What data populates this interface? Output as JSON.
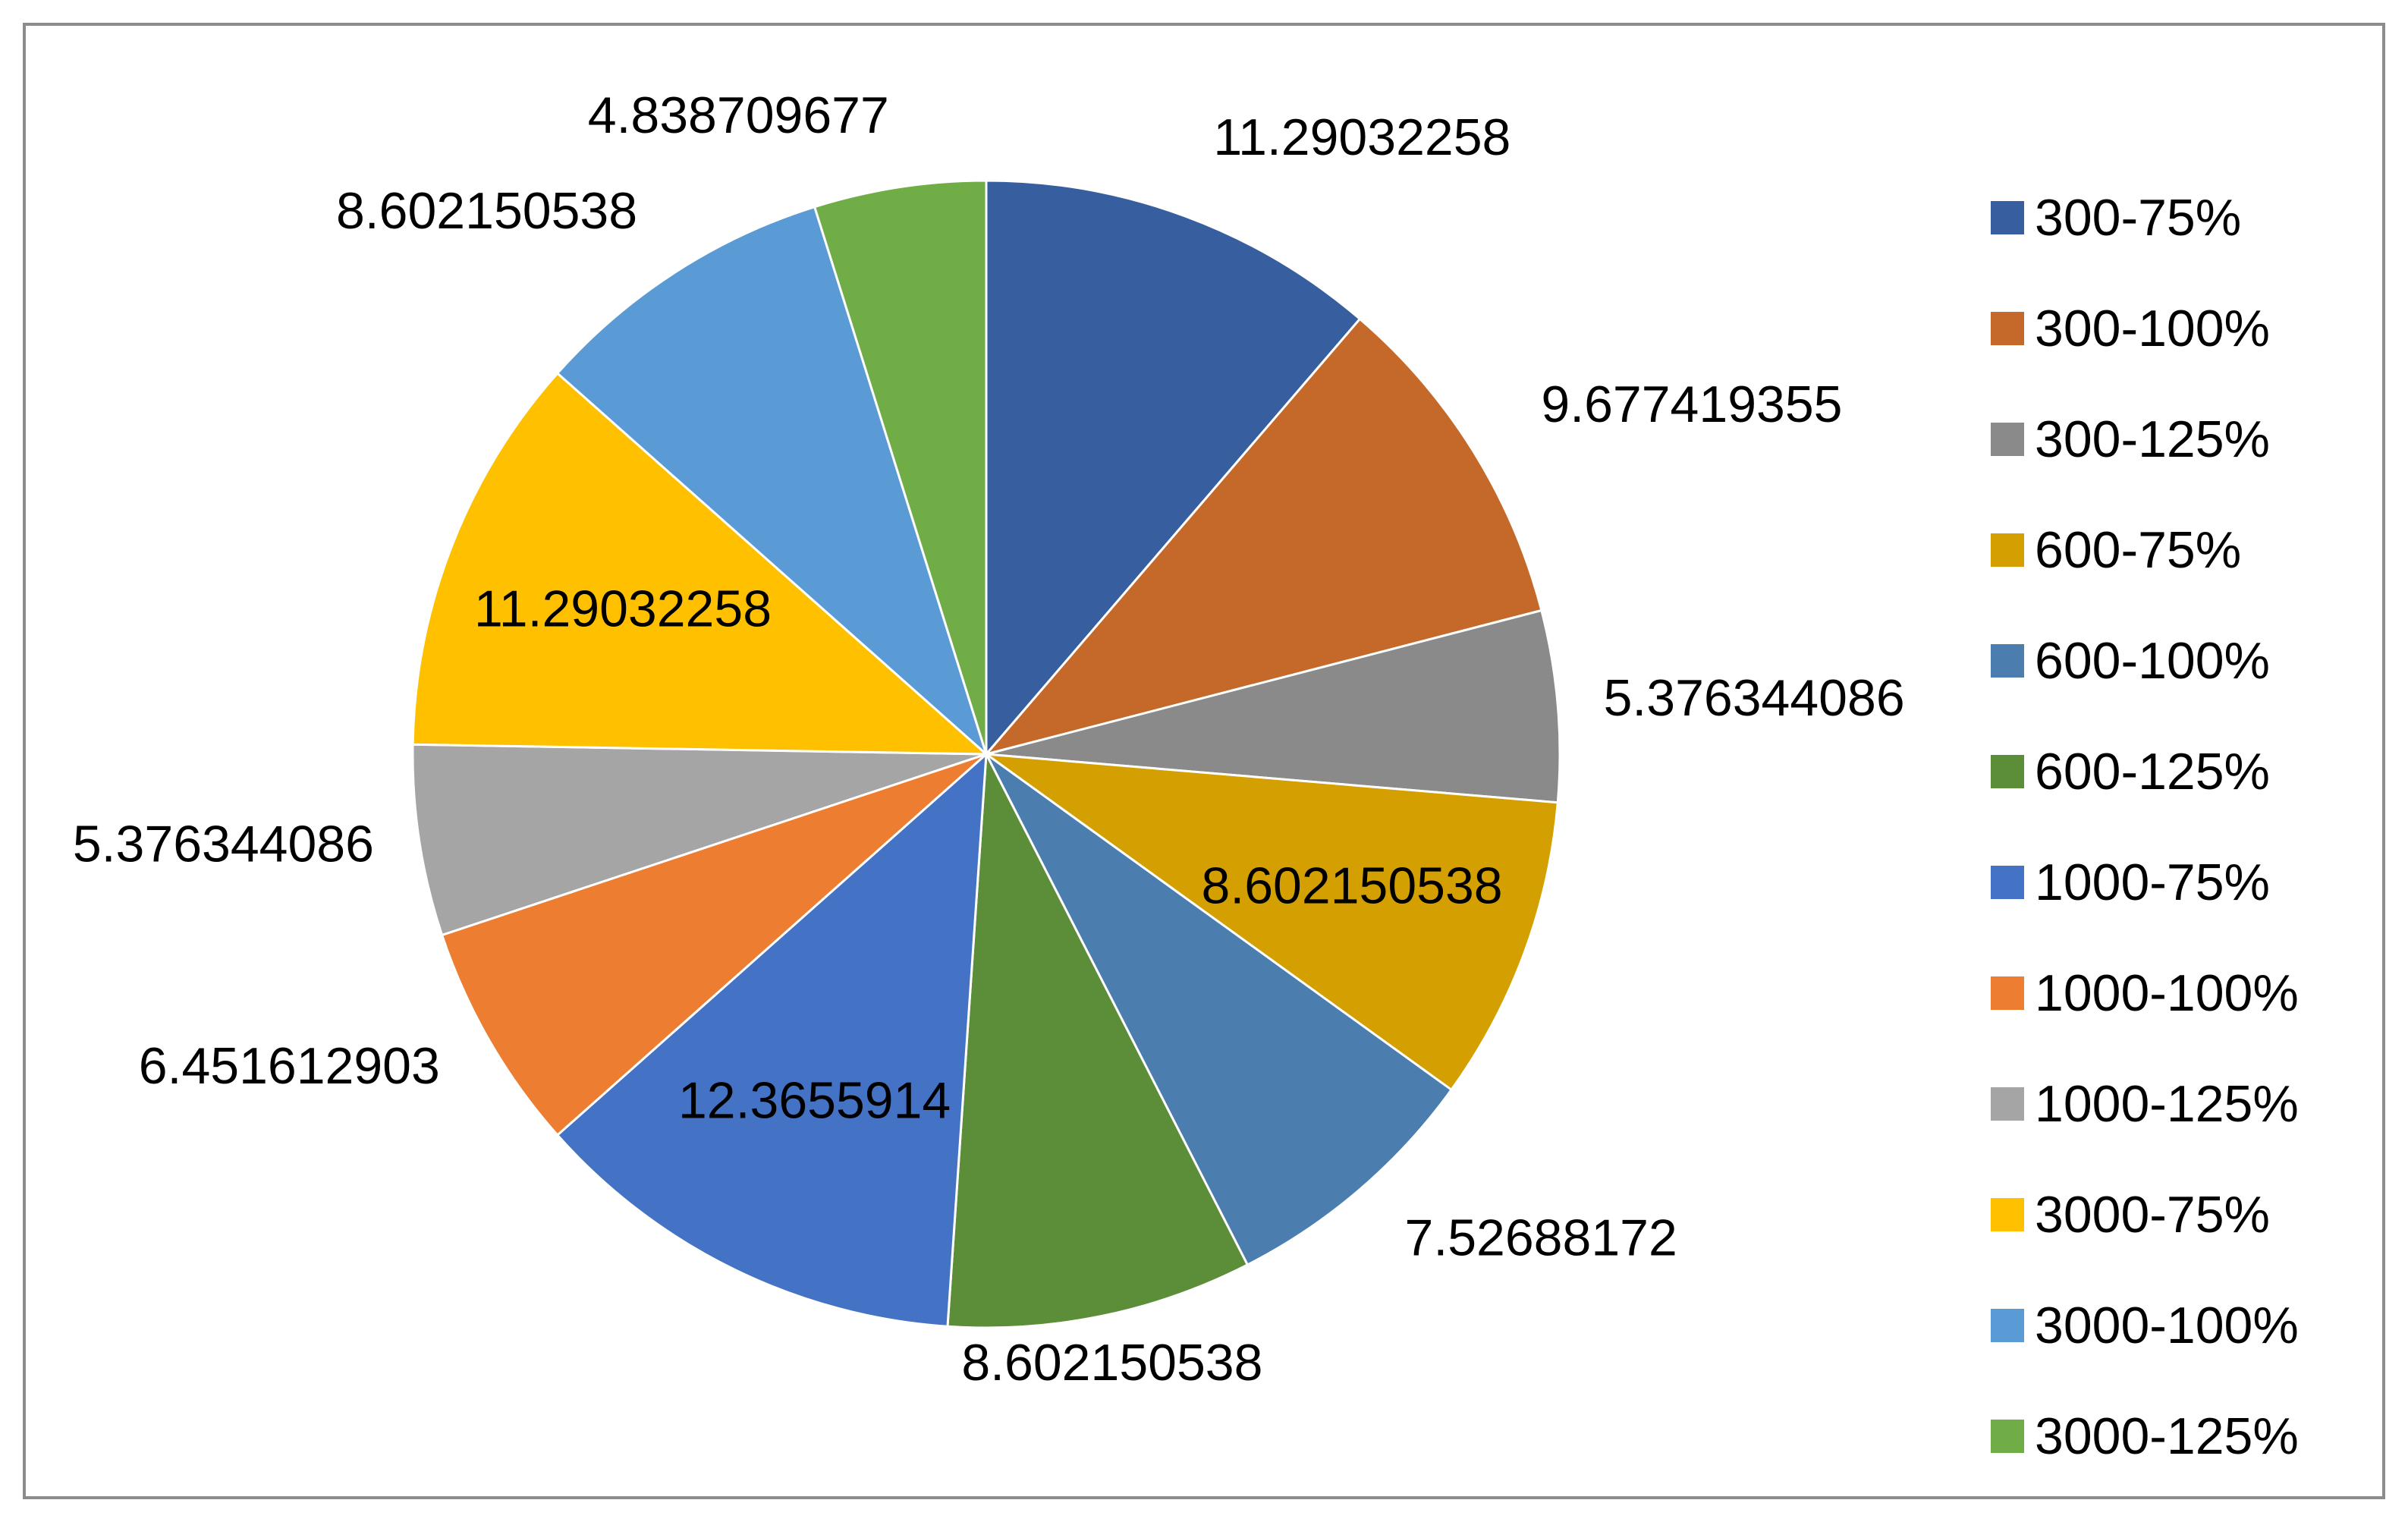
{
  "chart_data": {
    "type": "pie",
    "title": "",
    "categories": [
      "300-75%",
      "300-100%",
      "300-125%",
      "600-75%",
      "600-100%",
      "600-125%",
      "1000-75%",
      "1000-100%",
      "1000-125%",
      "3000-75%",
      "3000-100%",
      "3000-125%"
    ],
    "values": [
      11.29032258,
      9.677419355,
      5.376344086,
      8.602150538,
      7.52688172,
      8.602150538,
      12.3655914,
      6.451612903,
      5.376344086,
      11.29032258,
      8.602150538,
      4.838709677
    ],
    "data_labels": [
      "11.29032258",
      "9.677419355",
      "5.376344086",
      "8.602150538",
      "7.52688172",
      "8.602150538",
      "12.3655914",
      "6.451612903",
      "5.376344086",
      "11.29032258",
      "8.602150538",
      "4.838709677"
    ],
    "colors": [
      "#375E9F",
      "#C5692A",
      "#8A8A8A",
      "#D49F00",
      "#4B7EAE",
      "#5C8E39",
      "#4472C4",
      "#ED7D31",
      "#A5A5A5",
      "#FFC000",
      "#5B9BD5",
      "#70AD47"
    ],
    "start_angle": "12 o'clock",
    "direction": "clockwise",
    "legend": "right",
    "grid": false
  }
}
